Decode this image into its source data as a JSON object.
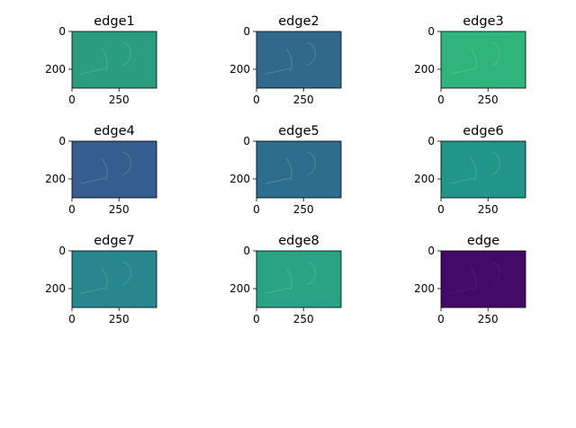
{
  "chart_data": {
    "type": "heatmap",
    "layout": "3x3 grid of image panels",
    "panels": [
      {
        "title": "edge1",
        "colormap": "viridis",
        "xticks": [
          "0",
          "250"
        ],
        "yticks": [
          "0",
          "200"
        ],
        "base_color": "#2a9d80"
      },
      {
        "title": "edge2",
        "colormap": "viridis",
        "xticks": [
          "0",
          "250"
        ],
        "yticks": [
          "0",
          "200"
        ],
        "base_color": "#2f6a8d"
      },
      {
        "title": "edge3",
        "colormap": "viridis",
        "xticks": [
          "0",
          "250"
        ],
        "yticks": [
          "0",
          "200"
        ],
        "base_color": "#2fb47c"
      },
      {
        "title": "edge4",
        "colormap": "viridis",
        "xticks": [
          "0",
          "250"
        ],
        "yticks": [
          "0",
          "200"
        ],
        "base_color": "#355d8d"
      },
      {
        "title": "edge5",
        "colormap": "viridis",
        "xticks": [
          "0",
          "250"
        ],
        "yticks": [
          "0",
          "200"
        ],
        "base_color": "#2d6e8e"
      },
      {
        "title": "edge6",
        "colormap": "viridis",
        "xticks": [
          "0",
          "250"
        ],
        "yticks": [
          "0",
          "200"
        ],
        "base_color": "#22968b"
      },
      {
        "title": "edge7",
        "colormap": "viridis",
        "xticks": [
          "0",
          "250"
        ],
        "yticks": [
          "0",
          "200"
        ],
        "base_color": "#27868e"
      },
      {
        "title": "edge8",
        "colormap": "viridis",
        "xticks": [
          "0",
          "250"
        ],
        "yticks": [
          "0",
          "200"
        ],
        "base_color": "#28a386"
      },
      {
        "title": "edge",
        "colormap": "viridis",
        "xticks": [
          "0",
          "250"
        ],
        "yticks": [
          "0",
          "200"
        ],
        "base_color": "#440a68"
      }
    ],
    "x_range": [
      0,
      450
    ],
    "y_range": [
      0,
      300
    ]
  }
}
